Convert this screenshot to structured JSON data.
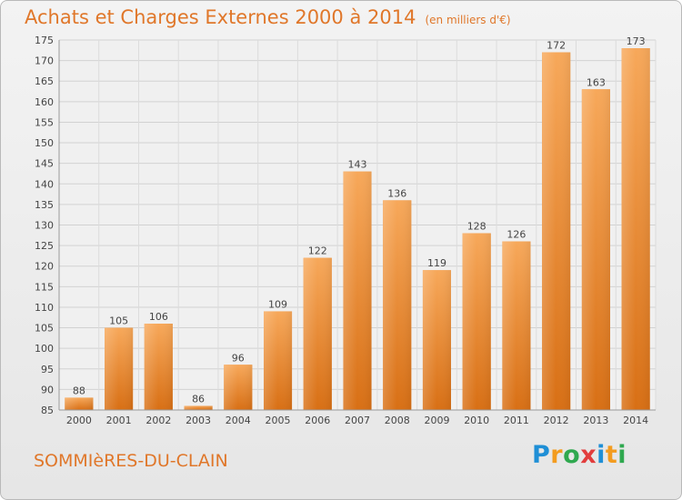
{
  "chart_data": {
    "type": "bar",
    "title": "Achats et Charges Externes 2000 à 2014",
    "subtitle": "(en milliers d'€)",
    "categories": [
      "2000",
      "2001",
      "2002",
      "2003",
      "2004",
      "2005",
      "2006",
      "2007",
      "2008",
      "2009",
      "2010",
      "2011",
      "2012",
      "2013",
      "2014"
    ],
    "values": [
      88,
      105,
      106,
      86,
      96,
      109,
      122,
      143,
      136,
      119,
      128,
      126,
      172,
      163,
      173
    ],
    "xlabel": "",
    "ylabel": "",
    "ylim": [
      85,
      175
    ],
    "ytick_step": 5,
    "grid": true,
    "bar_color": "#f08c2e"
  },
  "place_name": "SOMMIèRES-DU-CLAIN",
  "logo": {
    "text": "Proxiti",
    "letter_colors": [
      "#1f8fd6",
      "#f39c1f",
      "#2fa84f",
      "#e23d3d",
      "#1f8fd6",
      "#f39c1f",
      "#2fa84f"
    ]
  }
}
